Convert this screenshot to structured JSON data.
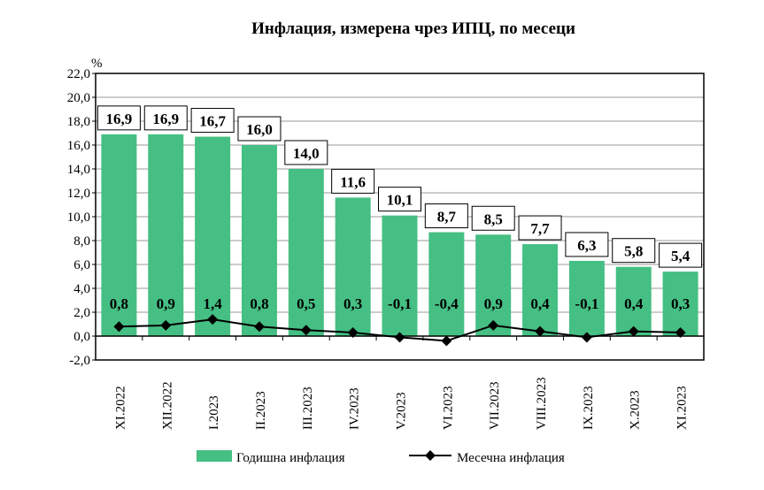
{
  "chart_data": {
    "type": "bar",
    "title": "Инфлация, измерена чрез ИПЦ, по месеци",
    "ylabel": "%",
    "ylim": [
      -2,
      22
    ],
    "yticks": [
      "-2,0",
      "0,0",
      "2,0",
      "4,0",
      "6,0",
      "8,0",
      "10,0",
      "12,0",
      "14,0",
      "16,0",
      "18,0",
      "20,0",
      "22,0"
    ],
    "grid": true,
    "legend_position": "bottom",
    "categories": [
      "XI.2022",
      "XII.2022",
      "I.2023",
      "II.2023",
      "III.2023",
      "IV.2023",
      "V.2023",
      "VI.2023",
      "VII.2023",
      "VIII.2023",
      "IX.2023",
      "X.2023",
      "XI.2023"
    ],
    "series": [
      {
        "name": "Годишна инфлация",
        "type": "bar",
        "color": "#45bf83",
        "values": [
          16.9,
          16.9,
          16.7,
          16.0,
          14.0,
          11.6,
          10.1,
          8.7,
          8.5,
          7.7,
          6.3,
          5.8,
          5.4
        ],
        "labels": [
          "16,9",
          "16,9",
          "16,7",
          "16,0",
          "14,0",
          "11,6",
          "10,1",
          "8,7",
          "8,5",
          "7,7",
          "6,3",
          "5,8",
          "5,4"
        ]
      },
      {
        "name": "Месечна инфлация",
        "type": "line",
        "color": "#000000",
        "values": [
          0.8,
          0.9,
          1.4,
          0.8,
          0.5,
          0.3,
          -0.1,
          -0.4,
          0.9,
          0.4,
          -0.1,
          0.4,
          0.3
        ],
        "labels": [
          "0,8",
          "0,9",
          "1,4",
          "0,8",
          "0,5",
          "0,3",
          "-0,1",
          "-0,4",
          "0,9",
          "0,4",
          "-0,1",
          "0,4",
          "0,3"
        ]
      }
    ]
  }
}
